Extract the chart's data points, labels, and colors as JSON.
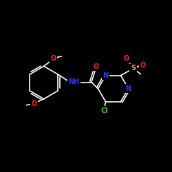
{
  "bg": "#000000",
  "bond": "#ffffff",
  "N_color": "#3333ff",
  "O_color": "#ff2020",
  "S_color": "#ffaa00",
  "Cl_color": "#33cc33",
  "figsize": [
    2.5,
    2.5
  ],
  "dpi": 100,
  "xlim": [
    0,
    10
  ],
  "ylim": [
    0,
    10
  ],
  "lw": 1.2,
  "fs": 7.0
}
